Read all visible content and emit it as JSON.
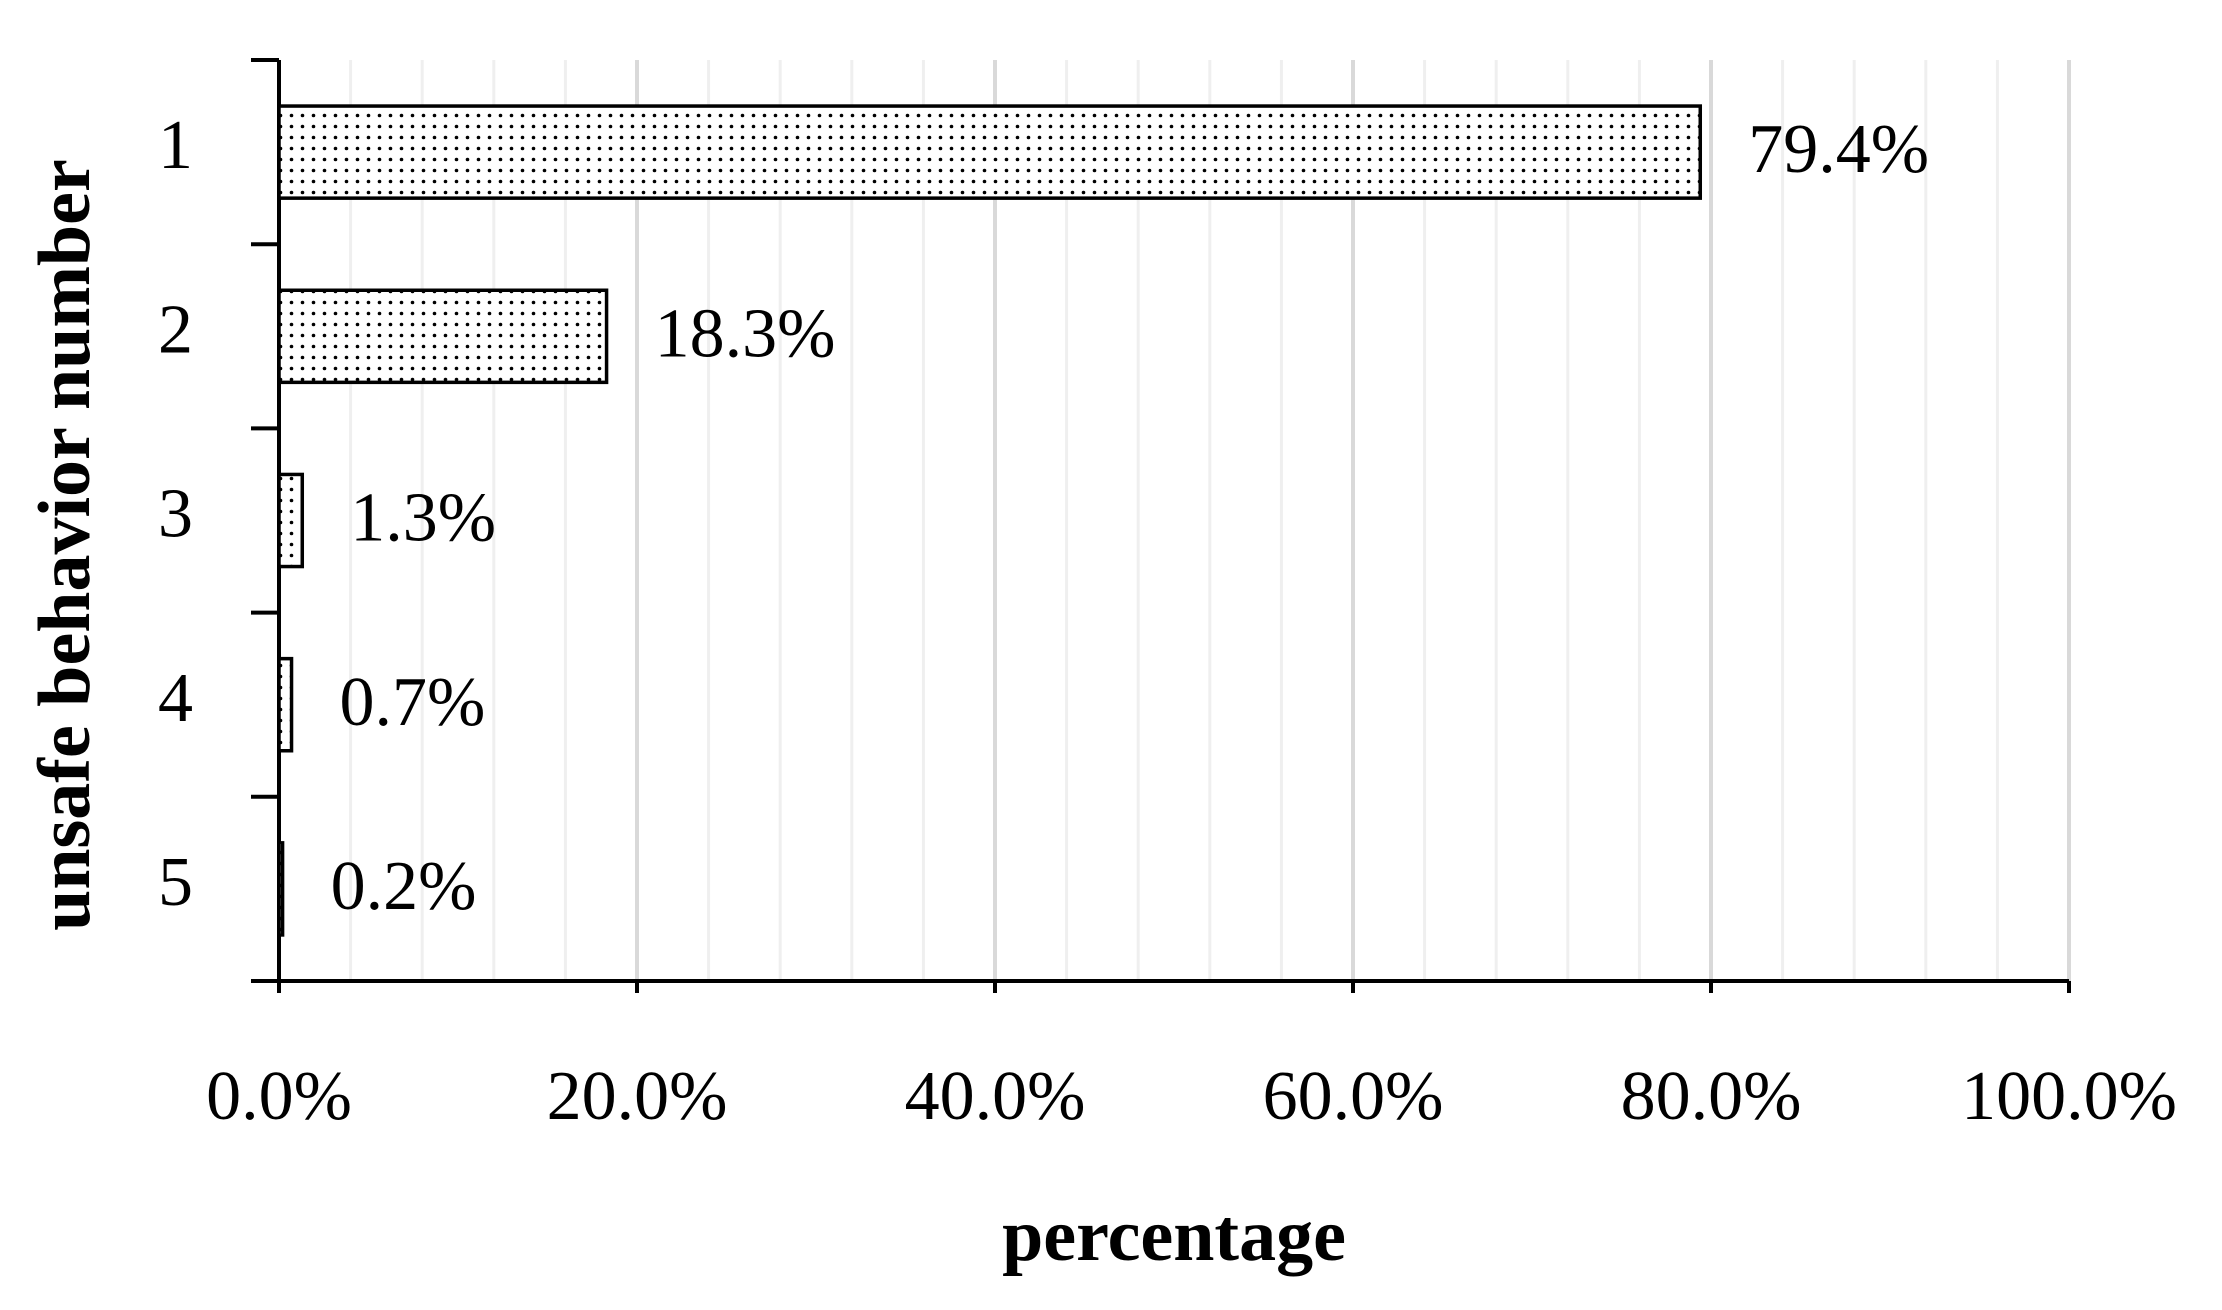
{
  "chart_data": {
    "type": "hbar",
    "x_label": "percentage",
    "y_label": "unsafe behavior number",
    "categories": [
      "1",
      "2",
      "3",
      "4",
      "5"
    ],
    "values": [
      79.4,
      18.3,
      1.3,
      0.7,
      0.2
    ],
    "value_labels": [
      "79.4%",
      "18.3%",
      "1.3%",
      "0.7%",
      "0.2%"
    ],
    "color": "#000000",
    "xlim": [
      0,
      100
    ],
    "xticks": [
      {
        "value": 0,
        "label": "0.0%"
      },
      {
        "value": 20,
        "label": "20.0%"
      },
      {
        "value": 40,
        "label": "40.0%"
      },
      {
        "value": 60,
        "label": "60.0%"
      },
      {
        "value": 80,
        "label": "80.0%"
      },
      {
        "value": 100,
        "label": "100.0%"
      }
    ],
    "grid": true,
    "minor_grid_divisions": 5
  }
}
